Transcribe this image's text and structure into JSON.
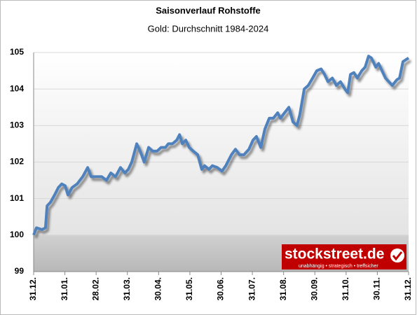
{
  "chart_data": {
    "type": "line",
    "title": "Saisonverlauf Rohstoffe",
    "subtitle": "Gold: Durchschnitt 1984-2024",
    "x": [
      0,
      0.09,
      0.27,
      0.38,
      0.43,
      0.54,
      0.67,
      0.79,
      0.9,
      1.01,
      1.1,
      1.23,
      1.39,
      1.57,
      1.73,
      1.84,
      2.02,
      2.18,
      2.33,
      2.47,
      2.62,
      2.78,
      2.92,
      3.03,
      3.14,
      3.3,
      3.41,
      3.54,
      3.68,
      3.81,
      3.95,
      4.08,
      4.22,
      4.31,
      4.44,
      4.58,
      4.67,
      4.76,
      4.87,
      4.98,
      5.11,
      5.25,
      5.38,
      5.47,
      5.61,
      5.72,
      5.88,
      6.03,
      6.15,
      6.33,
      6.46,
      6.59,
      6.73,
      6.89,
      7.02,
      7.13,
      7.27,
      7.4,
      7.54,
      7.67,
      7.81,
      7.9,
      8.03,
      8.17,
      8.3,
      8.43,
      8.52,
      8.66,
      8.79,
      8.93,
      9.06,
      9.2,
      9.31,
      9.42,
      9.56,
      9.69,
      9.82,
      9.96,
      10.05,
      10.14,
      10.25,
      10.36,
      10.5,
      10.61,
      10.72,
      10.81,
      10.95,
      11.04,
      11.15,
      11.26,
      11.37,
      11.48,
      11.62,
      11.71,
      11.82,
      12
    ],
    "series": [
      {
        "name": "Gold",
        "color": "#4f81bd",
        "values": [
          100,
          100.2,
          100.15,
          100.2,
          100.8,
          100.9,
          101.1,
          101.3,
          101.4,
          101.35,
          101.1,
          101.3,
          101.4,
          101.6,
          101.85,
          101.6,
          101.6,
          101.6,
          101.5,
          101.7,
          101.6,
          101.85,
          101.7,
          101.8,
          102,
          102.5,
          102.3,
          102,
          102.4,
          102.3,
          102.3,
          102.4,
          102.4,
          102.5,
          102.5,
          102.6,
          102.75,
          102.5,
          102.6,
          102.4,
          102.3,
          102.2,
          101.8,
          101.9,
          101.8,
          101.9,
          101.85,
          101.75,
          101.9,
          102.2,
          102.35,
          102.2,
          102.2,
          102.35,
          102.6,
          102.7,
          102.4,
          102.9,
          103.2,
          103.2,
          103.35,
          103.2,
          103.35,
          103.5,
          103.1,
          103,
          103.3,
          104,
          104.1,
          104.3,
          104.5,
          104.55,
          104.4,
          104.2,
          104.3,
          104.1,
          104.2,
          104,
          103.9,
          104.4,
          104.45,
          104.3,
          104.5,
          104.6,
          104.9,
          104.85,
          104.6,
          104.7,
          104.5,
          104.3,
          104.2,
          104.1,
          104.25,
          104.3,
          104.75,
          104.85
        ]
      }
    ],
    "xlim": [
      0,
      12
    ],
    "xticks": [
      {
        "value": 0,
        "label": "31.12."
      },
      {
        "value": 1,
        "label": "31.01."
      },
      {
        "value": 2,
        "label": "28.02."
      },
      {
        "value": 3,
        "label": "31.03."
      },
      {
        "value": 4,
        "label": "30.04."
      },
      {
        "value": 5,
        "label": "31.05."
      },
      {
        "value": 6,
        "label": "30.06."
      },
      {
        "value": 7,
        "label": "31.07."
      },
      {
        "value": 8,
        "label": "31.08."
      },
      {
        "value": 9,
        "label": "30.09."
      },
      {
        "value": 10,
        "label": "31.10."
      },
      {
        "value": 11,
        "label": "30.11."
      },
      {
        "value": 12,
        "label": "31.12."
      }
    ],
    "ylim": [
      99,
      105
    ],
    "yticks": [
      99,
      100,
      101,
      102,
      103,
      104,
      105
    ],
    "grid": true,
    "branding": {
      "name": "stockstreet.de",
      "tagline": "unabhängig • strategisch • treffsicher"
    }
  }
}
